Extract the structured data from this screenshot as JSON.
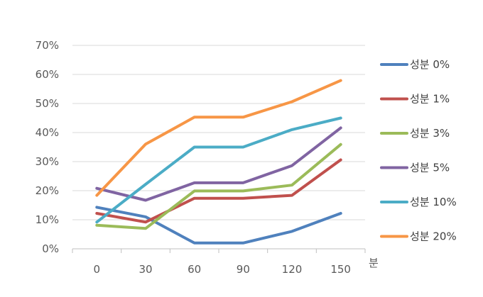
{
  "chart_data": {
    "type": "line",
    "title": "",
    "xlabel": "분",
    "ylabel": "",
    "x": [
      0,
      30,
      60,
      90,
      120,
      150
    ],
    "x_tick_labels": [
      "0",
      "30",
      "60",
      "90",
      "120",
      "150"
    ],
    "ylim": [
      0,
      70
    ],
    "y_ticks": [
      0,
      10,
      20,
      30,
      40,
      50,
      60,
      70
    ],
    "y_tick_labels": [
      "0%",
      "10%",
      "20%",
      "30%",
      "40%",
      "50%",
      "60%",
      "70%"
    ],
    "grid": "horizontal",
    "legend_position": "right",
    "series": [
      {
        "name": "성분 0%",
        "color": "#4F81BD",
        "values": [
          14.3,
          11.0,
          2.0,
          2.0,
          6.0,
          12.2
        ]
      },
      {
        "name": "성분 1%",
        "color": "#C0504D",
        "values": [
          12.2,
          9.2,
          17.4,
          17.4,
          18.4,
          30.6
        ]
      },
      {
        "name": "성분 3%",
        "color": "#9BBB59",
        "values": [
          8.1,
          7.0,
          19.9,
          19.9,
          21.9,
          35.9
        ]
      },
      {
        "name": "성분 5%",
        "color": "#8064A2",
        "values": [
          20.8,
          16.7,
          22.7,
          22.7,
          28.6,
          41.6
        ]
      },
      {
        "name": "성분 10%",
        "color": "#4BACC6",
        "values": [
          9.2,
          22.2,
          35.0,
          35.0,
          41.0,
          45.0
        ]
      },
      {
        "name": "성분 20%",
        "color": "#F79646",
        "values": [
          18.4,
          36.0,
          45.3,
          45.3,
          50.6,
          57.9
        ]
      }
    ]
  }
}
